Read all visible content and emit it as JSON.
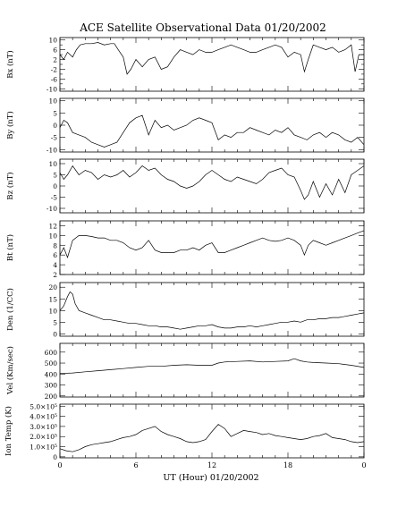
{
  "title": "ACE Satellite Observational Data  01/20/2002",
  "xlabel": "UT (Hour)  01/20/2002",
  "x_ticks": [
    "0",
    "6",
    "12",
    "18",
    "0"
  ],
  "panels": [
    {
      "ylabel": "Bx (nT)",
      "ticks": [
        "10",
        "6",
        "2",
        "-2",
        "-6",
        "-10"
      ],
      "tickvals": [
        10,
        6,
        2,
        -2,
        -6,
        -10
      ],
      "minor": [
        8,
        4,
        0,
        -4,
        -8
      ]
    },
    {
      "ylabel": "By (nT)",
      "ticks": [
        "10",
        "5",
        "0",
        "-5",
        "-10"
      ],
      "tickvals": [
        10,
        5,
        0,
        -5,
        -10
      ],
      "minor": []
    },
    {
      "ylabel": "Bz (nT)",
      "ticks": [
        "10",
        "5",
        "0",
        "-5",
        "-10"
      ],
      "tickvals": [
        10,
        5,
        0,
        -5,
        -10
      ],
      "minor": []
    },
    {
      "ylabel": "Bt (nT)",
      "ticks": [
        "12",
        "10",
        "8",
        "6",
        "4",
        "2"
      ],
      "tickvals": [
        12,
        10,
        8,
        6,
        4,
        2
      ],
      "minor": []
    },
    {
      "ylabel": "Den (1/CC)",
      "ticks": [
        "20",
        "15",
        "10",
        "5",
        "0"
      ],
      "tickvals": [
        20,
        15,
        10,
        5,
        0
      ],
      "minor": []
    },
    {
      "ylabel": "Vel (Km/sec)",
      "ticks": [
        "600",
        "500",
        "400",
        "300",
        "200"
      ],
      "tickvals": [
        600,
        500,
        400,
        300,
        200
      ],
      "minor": []
    },
    {
      "ylabel": "Ion Temp (K)",
      "ticks": [
        "5.0×10⁵",
        "4.0×10⁵",
        "3.0×10⁵",
        "2.0×10⁵",
        "1.0×10⁵",
        "0"
      ],
      "tickvals": [
        500000,
        400000,
        300000,
        200000,
        100000,
        0
      ],
      "minor": []
    }
  ],
  "chart_data": {
    "type": "line",
    "title": "ACE Satellite Observational Data  01/20/2002",
    "xlabel": "UT (Hour)  01/20/2002",
    "xlim": [
      0,
      24
    ],
    "series": [
      {
        "name": "Bx (nT)",
        "ylim": [
          -11,
          11
        ],
        "x": [
          0,
          0.3,
          0.6,
          1,
          1.3,
          1.6,
          2,
          2.5,
          3,
          3.5,
          4,
          4.3,
          4.6,
          5,
          5.3,
          5.6,
          6,
          6.5,
          7,
          7.5,
          8,
          8.5,
          9,
          9.5,
          10,
          10.5,
          11,
          11.5,
          12,
          12.5,
          13,
          13.5,
          14,
          14.5,
          15,
          15.5,
          16,
          16.5,
          17,
          17.5,
          18,
          18.5,
          19,
          19.3,
          19.6,
          20,
          20.5,
          21,
          21.5,
          22,
          22.5,
          23,
          23.3,
          23.6,
          24
        ],
        "y": [
          4,
          2,
          5,
          3,
          6,
          8,
          8.5,
          8.5,
          9,
          8,
          8.5,
          8.5,
          6,
          3,
          -4,
          -2,
          2,
          -1,
          2,
          3,
          -2,
          -1,
          3,
          6,
          5,
          4,
          6,
          5,
          5,
          6,
          7,
          8,
          7,
          6,
          5,
          5,
          6,
          7,
          8,
          7,
          3,
          5,
          4,
          -3,
          2,
          8,
          7,
          6,
          7,
          5,
          6,
          8,
          -3,
          4,
          4
        ]
      },
      {
        "name": "By (nT)",
        "ylim": [
          -11,
          11
        ],
        "x": [
          0,
          0.3,
          0.6,
          1,
          1.5,
          2,
          2.5,
          3,
          3.5,
          4,
          4.5,
          5,
          5.5,
          6,
          6.5,
          7,
          7.5,
          8,
          8.5,
          9,
          9.5,
          10,
          10.5,
          11,
          11.5,
          12,
          12.5,
          13,
          13.5,
          14,
          14.5,
          15,
          15.5,
          16,
          16.5,
          17,
          17.5,
          18,
          18.5,
          19,
          19.5,
          20,
          20.5,
          21,
          21.5,
          22,
          22.5,
          23,
          23.5,
          24
        ],
        "y": [
          -1,
          2,
          1,
          -3,
          -4,
          -5,
          -7,
          -8,
          -9,
          -8,
          -7,
          -3,
          1,
          3,
          4,
          -4,
          2,
          -1,
          0,
          -2,
          -1,
          0,
          2,
          3,
          2,
          1,
          -6,
          -4,
          -5,
          -3,
          -3,
          -1,
          -2,
          -3,
          -4,
          -2,
          -3,
          -1,
          -4,
          -5,
          -6,
          -4,
          -3,
          -5,
          -3,
          -4,
          -6,
          -7,
          -5,
          -8
        ]
      },
      {
        "name": "Bz (nT)",
        "ylim": [
          -12,
          12
        ],
        "x": [
          0,
          0.3,
          0.6,
          1,
          1.5,
          2,
          2.5,
          3,
          3.5,
          4,
          4.5,
          5,
          5.5,
          6,
          6.5,
          7,
          7.5,
          8,
          8.5,
          9,
          9.5,
          10,
          10.5,
          11,
          11.5,
          12,
          12.5,
          13,
          13.5,
          14,
          14.5,
          15,
          15.5,
          16,
          16.5,
          17,
          17.5,
          18,
          18.5,
          19,
          19.3,
          19.6,
          20,
          20.5,
          21,
          21.5,
          22,
          22.5,
          23,
          23.5,
          24
        ],
        "y": [
          6,
          3,
          5,
          9,
          5,
          7,
          6,
          3,
          5,
          4,
          5,
          7,
          4,
          6,
          9,
          7,
          8,
          5,
          3,
          2,
          0,
          -1,
          0,
          2,
          5,
          7,
          5,
          3,
          2,
          4,
          3,
          2,
          1,
          3,
          6,
          7,
          8,
          5,
          4,
          -2,
          -6,
          -4,
          2,
          -5,
          1,
          -4,
          3,
          -3,
          5,
          7,
          9
        ]
      },
      {
        "name": "Bt (nT)",
        "ylim": [
          2,
          13
        ],
        "x": [
          0,
          0.3,
          0.6,
          1,
          1.5,
          2,
          2.5,
          3,
          3.5,
          4,
          4.5,
          5,
          5.5,
          6,
          6.5,
          7,
          7.5,
          8,
          8.5,
          9,
          9.5,
          10,
          10.5,
          11,
          11.5,
          12,
          12.5,
          13,
          13.5,
          14,
          14.5,
          15,
          15.5,
          16,
          16.5,
          17,
          17.5,
          18,
          18.5,
          19,
          19.3,
          19.6,
          20,
          20.5,
          21,
          21.5,
          22,
          22.5,
          23,
          23.5,
          24
        ],
        "y": [
          6,
          7.5,
          5.5,
          9,
          10,
          10,
          9.8,
          9.5,
          9.5,
          9,
          9,
          8.5,
          7.5,
          7,
          7.5,
          9,
          7,
          6.5,
          6.5,
          6.5,
          7,
          7,
          7.5,
          7,
          8,
          8.5,
          6.5,
          6.5,
          7,
          7.5,
          8,
          8.5,
          9,
          9.5,
          9,
          8.8,
          9,
          9.5,
          9,
          8,
          6,
          8,
          9,
          8.5,
          8,
          8.5,
          9,
          9.5,
          10,
          10.5,
          11
        ]
      },
      {
        "name": "Den (1/CC)",
        "ylim": [
          -1,
          22
        ],
        "x": [
          0,
          0.3,
          0.6,
          0.8,
          1,
          1.2,
          1.5,
          2,
          2.5,
          3,
          3.5,
          4,
          4.5,
          5,
          5.5,
          6,
          6.5,
          7,
          7.5,
          8,
          8.5,
          9,
          9.5,
          10,
          10.5,
          11,
          11.5,
          12,
          12.5,
          13,
          13.5,
          14,
          14.5,
          15,
          15.5,
          16,
          16.5,
          17,
          17.5,
          18,
          18.5,
          19,
          19.5,
          20,
          20.5,
          21,
          21.5,
          22,
          22.5,
          23,
          23.5,
          24
        ],
        "y": [
          10,
          12,
          16,
          18,
          17,
          13,
          10,
          9,
          8,
          7,
          6,
          6,
          5.5,
          5,
          4.5,
          4.5,
          4,
          3.5,
          3.5,
          3,
          3,
          2.5,
          2,
          2.5,
          3,
          3.5,
          3.5,
          4,
          3,
          2.5,
          2.5,
          3,
          3,
          3.5,
          3,
          3.5,
          4,
          4.5,
          5,
          5,
          5.5,
          5,
          6,
          6,
          6.5,
          6.5,
          7,
          7,
          7.5,
          8,
          8.5,
          9
        ]
      },
      {
        "name": "Vel (Km/sec)",
        "ylim": [
          190,
          680
        ],
        "x": [
          0,
          1,
          2,
          3,
          4,
          5,
          6,
          7,
          8,
          9,
          10,
          11,
          12,
          12.5,
          13,
          14,
          15,
          16,
          17,
          18,
          18.5,
          19,
          19.5,
          20,
          21,
          22,
          23,
          24
        ],
        "y": [
          405,
          410,
          420,
          430,
          440,
          450,
          460,
          470,
          470,
          480,
          485,
          480,
          480,
          500,
          510,
          515,
          520,
          510,
          515,
          520,
          540,
          520,
          510,
          505,
          500,
          495,
          480,
          460
        ]
      },
      {
        "name": "Ion Temp (K)",
        "ylim": [
          -10000,
          520000
        ],
        "x": [
          0,
          0.5,
          1,
          1.5,
          2,
          2.5,
          3,
          3.5,
          4,
          4.5,
          5,
          5.5,
          6,
          6.5,
          7,
          7.5,
          8,
          8.5,
          9,
          9.5,
          10,
          10.5,
          11,
          11.5,
          12,
          12.5,
          13,
          13.5,
          14,
          14.5,
          15,
          15.5,
          16,
          16.5,
          17,
          17.5,
          18,
          18.5,
          19,
          19.5,
          20,
          20.5,
          21,
          21.5,
          22,
          22.5,
          23,
          23.5,
          24
        ],
        "y": [
          80000,
          60000,
          50000,
          70000,
          100000,
          120000,
          130000,
          140000,
          150000,
          170000,
          190000,
          200000,
          220000,
          260000,
          280000,
          300000,
          250000,
          220000,
          200000,
          180000,
          150000,
          140000,
          150000,
          170000,
          250000,
          320000,
          280000,
          200000,
          230000,
          260000,
          250000,
          240000,
          220000,
          230000,
          210000,
          200000,
          190000,
          180000,
          170000,
          180000,
          200000,
          210000,
          230000,
          190000,
          180000,
          170000,
          150000,
          140000,
          150000
        ]
      }
    ]
  }
}
